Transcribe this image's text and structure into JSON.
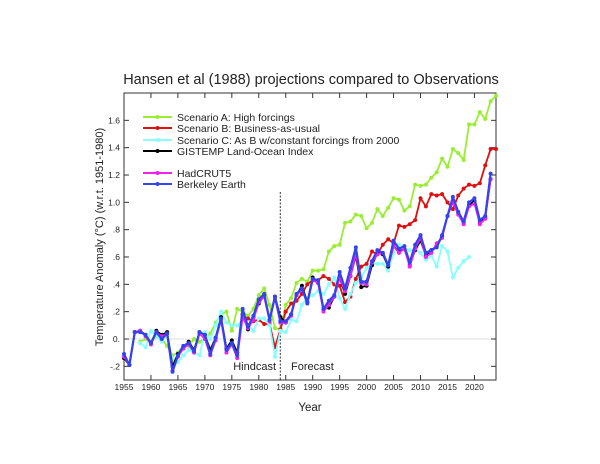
{
  "chart_data": {
    "type": "line",
    "title": "Hansen et al (1988) projections compared to Observations",
    "xlabel": "Year",
    "ylabel": "Temperature Anomaly (°C) (w.r.t. 1951-1980)",
    "xlim": [
      1955,
      2024
    ],
    "ylim": [
      -0.3,
      1.8
    ],
    "xticks": [
      1955,
      1960,
      1965,
      1970,
      1975,
      1980,
      1985,
      1990,
      1995,
      2000,
      2005,
      2010,
      2015,
      2020
    ],
    "yticks": [
      -0.2,
      0,
      0.2,
      0.4,
      0.6,
      0.8,
      1.0,
      1.2,
      1.4,
      1.6
    ],
    "ytick_labels": [
      "-.2",
      "0.",
      ".2",
      ".4",
      ".6",
      ".8",
      "1.0",
      "1.2",
      "1.4",
      "1.6"
    ],
    "grid": false,
    "zero_line": true,
    "legend_placement": "top-left",
    "divider": {
      "x": 1984,
      "left_label": "Hindcast",
      "right_label": "Forecast"
    },
    "series": [
      {
        "name": "Scenario A: High forcings",
        "color": "#99ee33",
        "start": 1958,
        "values": [
          -0.02,
          0.0,
          -0.02,
          0.02,
          0.0,
          -0.05,
          -0.12,
          -0.1,
          -0.05,
          -0.05,
          0.0,
          -0.02,
          0.0,
          0.04,
          0.12,
          0.18,
          0.2,
          0.06,
          0.22,
          0.2,
          0.17,
          0.22,
          0.32,
          0.37,
          0.25,
          0.08,
          0.07,
          0.25,
          0.3,
          0.41,
          0.44,
          0.42,
          0.5,
          0.5,
          0.51,
          0.64,
          0.68,
          0.69,
          0.85,
          0.86,
          0.91,
          0.9,
          0.81,
          0.85,
          0.95,
          0.9,
          0.96,
          1.03,
          1.02,
          0.94,
          0.97,
          1.13,
          1.12,
          1.13,
          1.18,
          1.22,
          1.32,
          1.26,
          1.39,
          1.36,
          1.31,
          1.57,
          1.57,
          1.66,
          1.61,
          1.74,
          1.78
        ]
      },
      {
        "name": "Scenario B: Business-as-usual",
        "color": "#dd1111",
        "start": 1978,
        "values": [
          0.15,
          0.13,
          0.14,
          0.11,
          0.11,
          -0.06,
          0.07,
          0.2,
          0.26,
          0.28,
          0.33,
          0.4,
          0.43,
          0.43,
          0.46,
          0.44,
          0.4,
          0.39,
          0.27,
          0.31,
          0.44,
          0.53,
          0.55,
          0.64,
          0.62,
          0.69,
          0.73,
          0.7,
          0.83,
          0.82,
          0.84,
          0.87,
          1.03,
          0.97,
          1.06,
          1.05,
          1.06,
          1.0,
          0.95,
          1.05,
          1.1,
          1.13,
          1.12,
          1.14,
          1.27,
          1.39,
          1.39
        ]
      },
      {
        "name": "Scenario C: As B w/constant forcings from 2000",
        "color": "#88ffff",
        "start": 1958,
        "values": [
          -0.03,
          -0.06,
          0.06,
          0.02,
          -0.02,
          0.03,
          -0.15,
          -0.17,
          -0.12,
          -0.08,
          -0.1,
          -0.12,
          0.05,
          0.0,
          0.1,
          0.2,
          0.12,
          0.1,
          0.1,
          0.14,
          0.1,
          0.06,
          0.15,
          0.15,
          0.1,
          -0.13,
          0.06,
          0.05,
          0.14,
          0.13,
          0.25,
          0.3,
          0.32,
          0.35,
          0.33,
          0.4,
          0.45,
          0.3,
          0.22,
          0.33,
          0.41,
          0.45,
          0.52,
          0.55,
          0.55,
          0.55,
          0.5,
          0.63,
          0.69,
          0.66,
          0.65,
          0.65,
          0.63,
          0.58,
          0.61,
          0.53,
          0.68,
          0.64,
          0.45,
          0.52,
          0.57,
          0.6
        ]
      },
      {
        "name": "GISTEMP Land-Ocean Index",
        "color": "#000000",
        "start": 1955,
        "values": [
          -0.14,
          -0.19,
          0.05,
          0.06,
          0.03,
          -0.03,
          0.06,
          0.03,
          0.05,
          -0.2,
          -0.11,
          -0.06,
          -0.02,
          -0.08,
          0.05,
          0.03,
          -0.08,
          0.01,
          0.16,
          -0.07,
          -0.01,
          -0.1,
          0.18,
          0.07,
          0.16,
          0.26,
          0.32,
          0.14,
          0.31,
          0.16,
          0.12,
          0.18,
          0.32,
          0.39,
          0.27,
          0.45,
          0.41,
          0.22,
          0.23,
          0.31,
          0.45,
          0.33,
          0.46,
          0.61,
          0.38,
          0.39,
          0.54,
          0.63,
          0.62,
          0.53,
          0.68,
          0.64,
          0.66,
          0.54,
          0.65,
          0.72,
          0.61,
          0.65,
          0.68,
          0.75,
          0.9,
          1.01,
          0.92,
          0.85,
          0.98,
          1.01,
          0.85,
          0.89,
          1.17
        ]
      },
      {
        "name": "HadCRUT5",
        "color": "#ee22ee",
        "start": 1955,
        "values": [
          -0.13,
          -0.19,
          0.05,
          0.06,
          0.02,
          -0.04,
          0.05,
          0.02,
          0.04,
          -0.23,
          -0.13,
          -0.07,
          -0.04,
          -0.1,
          0.04,
          0.0,
          -0.12,
          -0.01,
          0.14,
          -0.1,
          -0.04,
          -0.14,
          0.16,
          0.08,
          0.14,
          0.27,
          0.31,
          0.13,
          0.3,
          0.12,
          0.12,
          0.17,
          0.32,
          0.36,
          0.27,
          0.43,
          0.41,
          0.2,
          0.25,
          0.31,
          0.45,
          0.35,
          0.46,
          0.62,
          0.41,
          0.4,
          0.56,
          0.62,
          0.63,
          0.54,
          0.68,
          0.63,
          0.66,
          0.53,
          0.66,
          0.74,
          0.6,
          0.63,
          0.7,
          0.74,
          0.9,
          1.0,
          0.91,
          0.84,
          0.97,
          0.99,
          0.84,
          0.88,
          1.17
        ]
      },
      {
        "name": "Berkeley Earth",
        "color": "#3344ee",
        "start": 1955,
        "values": [
          -0.11,
          -0.19,
          0.05,
          0.05,
          0.03,
          -0.03,
          0.05,
          0.0,
          0.04,
          -0.24,
          -0.12,
          -0.05,
          -0.03,
          -0.09,
          0.05,
          0.03,
          -0.11,
          0.01,
          0.15,
          -0.08,
          -0.03,
          -0.12,
          0.22,
          0.09,
          0.17,
          0.29,
          0.33,
          0.14,
          0.31,
          0.13,
          0.13,
          0.18,
          0.33,
          0.37,
          0.26,
          0.44,
          0.43,
          0.22,
          0.28,
          0.32,
          0.49,
          0.37,
          0.52,
          0.67,
          0.42,
          0.42,
          0.57,
          0.65,
          0.63,
          0.54,
          0.72,
          0.66,
          0.68,
          0.56,
          0.69,
          0.76,
          0.63,
          0.65,
          0.67,
          0.76,
          0.9,
          1.04,
          0.93,
          0.86,
          1.0,
          1.03,
          0.87,
          0.9,
          1.21
        ]
      }
    ]
  }
}
